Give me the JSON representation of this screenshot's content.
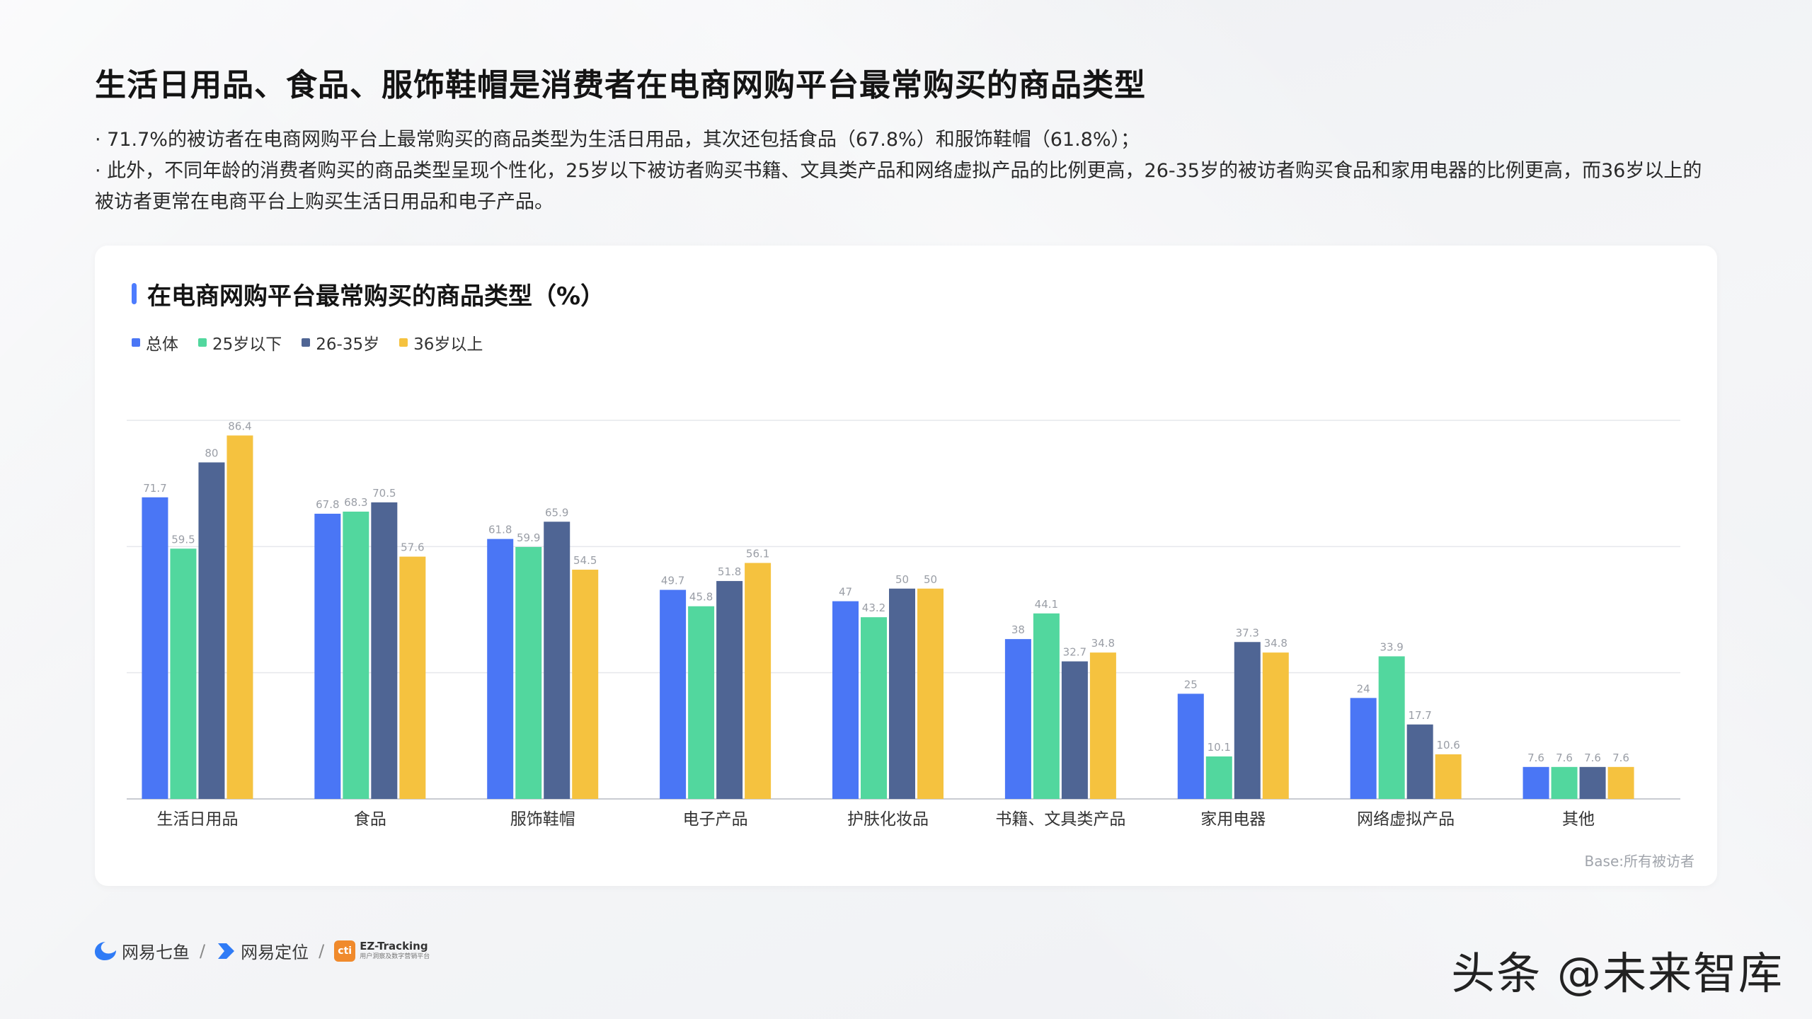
{
  "title": "生活日用品、食品、服饰鞋帽是消费者在电商网购平台最常购买的商品类型",
  "description": [
    "· 71.7%的被访者在电商网购平台上最常购买的商品类型为生活日用品，其次还包括食品（67.8%）和服饰鞋帽（61.8%）；",
    "· 此外，不同年龄的消费者购买的商品类型呈现个性化，25岁以下被访者购买书籍、文具类产品和网络虚拟产品的比例更高，26-35岁的被访者购买食品和家用电器的比例更高，而36岁以上的被访者更常在电商平台上购买生活日用品和电子产品。"
  ],
  "chart_title": "在电商网购平台最常购买的商品类型（%）",
  "base_note": "Base:所有被访者",
  "footer": {
    "logo1": "网易七鱼",
    "logo2": "网易定位",
    "logo3_main": "EZ-Tracking",
    "logo3_sub": "用户洞察及数字营销平台",
    "logo3_mark": "cti",
    "sep": "/",
    "watermark": "头条 @未来智库"
  },
  "colors": {
    "accent": "#4d7cfe",
    "series": [
      "#4a76f5",
      "#52d79e",
      "#4f6594",
      "#f5c23f"
    ]
  },
  "chart_data": {
    "type": "bar",
    "title": "在电商网购平台最常购买的商品类型（%）",
    "categories": [
      "生活日用品",
      "食品",
      "服饰鞋帽",
      "电子产品",
      "护肤化妆品",
      "书籍、文具类产品",
      "家用电器",
      "网络虚拟产品",
      "其他"
    ],
    "series": [
      {
        "name": "总体",
        "values": [
          71.7,
          67.8,
          61.8,
          49.7,
          47,
          38,
          25,
          24,
          7.6
        ]
      },
      {
        "name": "25岁以下",
        "values": [
          59.5,
          68.3,
          59.9,
          45.8,
          43.2,
          44.1,
          10.1,
          33.9,
          7.6
        ]
      },
      {
        "name": "26-35岁",
        "values": [
          80,
          70.5,
          65.9,
          51.8,
          50,
          32.7,
          37.3,
          17.7,
          7.6
        ]
      },
      {
        "name": "36岁以上",
        "values": [
          86.4,
          57.6,
          54.5,
          56.1,
          50,
          34.8,
          34.8,
          10.6,
          7.6
        ]
      }
    ],
    "ylim": [
      0,
      90
    ],
    "grid": true,
    "legend_position": "top-left"
  }
}
